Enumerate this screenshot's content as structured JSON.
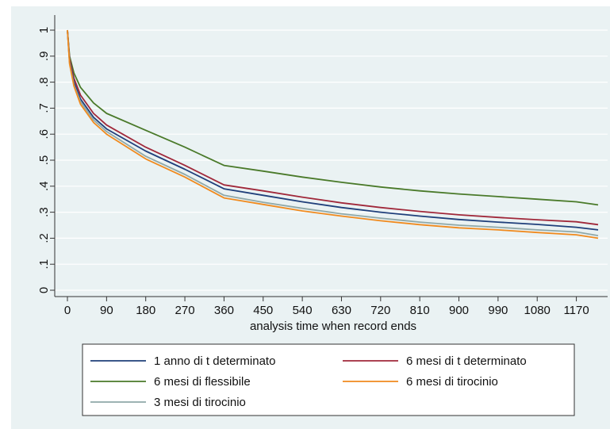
{
  "chart_data": {
    "type": "line",
    "title": "",
    "xlabel": "analysis time when record ends",
    "ylabel": "",
    "xlim": [
      0,
      1230
    ],
    "ylim": [
      0,
      1
    ],
    "xticks": [
      0,
      90,
      180,
      270,
      360,
      450,
      540,
      630,
      720,
      810,
      900,
      990,
      1080,
      1170
    ],
    "xtick_labels": [
      "0",
      "90",
      "180",
      "270",
      "360",
      "450",
      "540",
      "630",
      "720",
      "810",
      "900",
      "990",
      "1080",
      "1170"
    ],
    "yticks": [
      0,
      0.1,
      0.2,
      0.3,
      0.4,
      0.5,
      0.6,
      0.7,
      0.8,
      0.9,
      1
    ],
    "ytick_labels": [
      "0",
      ".1",
      ".2",
      ".3",
      ".4",
      ".5",
      ".6",
      ".7",
      ".8",
      ".9",
      "1"
    ],
    "grid": "horizontal",
    "legend_position": "bottom",
    "x": [
      0,
      5,
      15,
      30,
      60,
      90,
      180,
      270,
      360,
      450,
      540,
      630,
      720,
      810,
      900,
      990,
      1080,
      1170,
      1220
    ],
    "series": [
      {
        "name": "1 anno di t determinato",
        "color": "#1f3f7a",
        "values": [
          1.0,
          0.88,
          0.8,
          0.735,
          0.665,
          0.62,
          0.535,
          0.465,
          0.39,
          0.365,
          0.34,
          0.318,
          0.3,
          0.285,
          0.272,
          0.262,
          0.253,
          0.242,
          0.232
        ]
      },
      {
        "name": "6 mesi di t determinato",
        "color": "#a0283a",
        "values": [
          1.0,
          0.89,
          0.815,
          0.75,
          0.68,
          0.635,
          0.55,
          0.48,
          0.405,
          0.382,
          0.358,
          0.336,
          0.318,
          0.303,
          0.29,
          0.28,
          0.271,
          0.263,
          0.252
        ]
      },
      {
        "name": "6 mesi di flessibile",
        "color": "#4a7a2a",
        "values": [
          1.0,
          0.9,
          0.835,
          0.78,
          0.72,
          0.68,
          0.615,
          0.55,
          0.48,
          0.458,
          0.435,
          0.415,
          0.397,
          0.382,
          0.37,
          0.36,
          0.35,
          0.34,
          0.328
        ]
      },
      {
        "name": "6 mesi di tirocinio",
        "color": "#f08a1e",
        "values": [
          1.0,
          0.87,
          0.785,
          0.715,
          0.645,
          0.6,
          0.505,
          0.435,
          0.355,
          0.33,
          0.305,
          0.285,
          0.267,
          0.252,
          0.24,
          0.232,
          0.222,
          0.213,
          0.2
        ]
      },
      {
        "name": "3 mesi di tirocinio",
        "color": "#8fa8a8",
        "values": [
          1.0,
          0.875,
          0.79,
          0.725,
          0.655,
          0.61,
          0.515,
          0.445,
          0.365,
          0.338,
          0.315,
          0.294,
          0.277,
          0.262,
          0.25,
          0.242,
          0.232,
          0.224,
          0.21
        ]
      }
    ],
    "colors": {
      "plot_region_background": "#eaf2f3",
      "grid_line": "#ffffff",
      "outer_background": "#ffffff"
    }
  }
}
